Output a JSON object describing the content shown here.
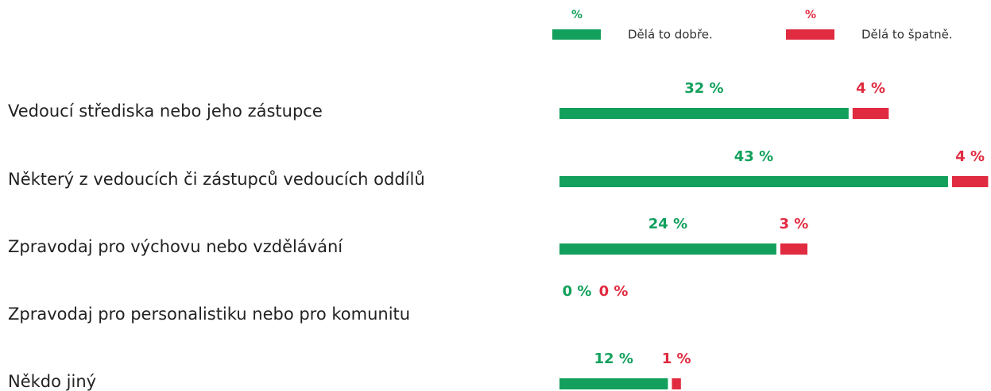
{
  "chart_data": {
    "type": "bar",
    "categories": [
      "Vedoucí střediska nebo jeho zástupce",
      "Některý z vedoucích či zástupců vedoucích oddílů",
      "Zpravodaj pro výchovu nebo vzdělávání",
      "Zpravodaj pro personalistiku nebo pro komunitu",
      "Někdo jiný"
    ],
    "series": [
      {
        "name": "Dělá to dobře.",
        "unit": "%",
        "color": "#12a05c",
        "values": [
          32,
          43,
          24,
          0,
          12
        ],
        "value_labels": [
          "32 %",
          "43 %",
          "24 %",
          "0 %",
          "12 %"
        ]
      },
      {
        "name": "Dělá to špatně.",
        "unit": "%",
        "color": "#e02b40",
        "values": [
          4,
          4,
          3,
          0,
          1
        ],
        "value_labels": [
          "4 %",
          "4 %",
          "3 %",
          "0 %",
          "1 %"
        ]
      }
    ]
  }
}
